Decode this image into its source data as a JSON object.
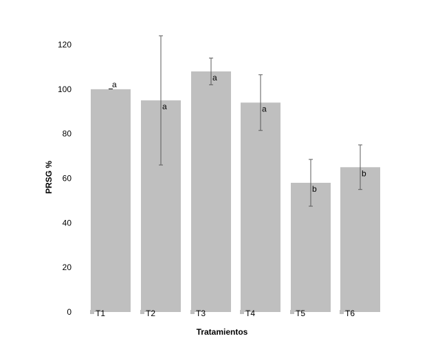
{
  "chart_data": {
    "type": "bar",
    "xlabel": "Tratamientos",
    "ylabel": "PRSG %",
    "ylim": [
      0,
      120
    ],
    "yticks": [
      0,
      20,
      40,
      60,
      80,
      100,
      120
    ],
    "grid": false,
    "legend": "none",
    "bar_color": "#bfbfbf",
    "error_color": "#595959",
    "categories": [
      "T1",
      "T2",
      "T3",
      "T4",
      "T5",
      "T6"
    ],
    "values": [
      100,
      95,
      108,
      94,
      58,
      65
    ],
    "error": [
      0,
      29,
      6,
      12.5,
      10.5,
      10
    ],
    "significance": [
      "a",
      "a",
      "a",
      "a",
      "b",
      "b"
    ]
  }
}
